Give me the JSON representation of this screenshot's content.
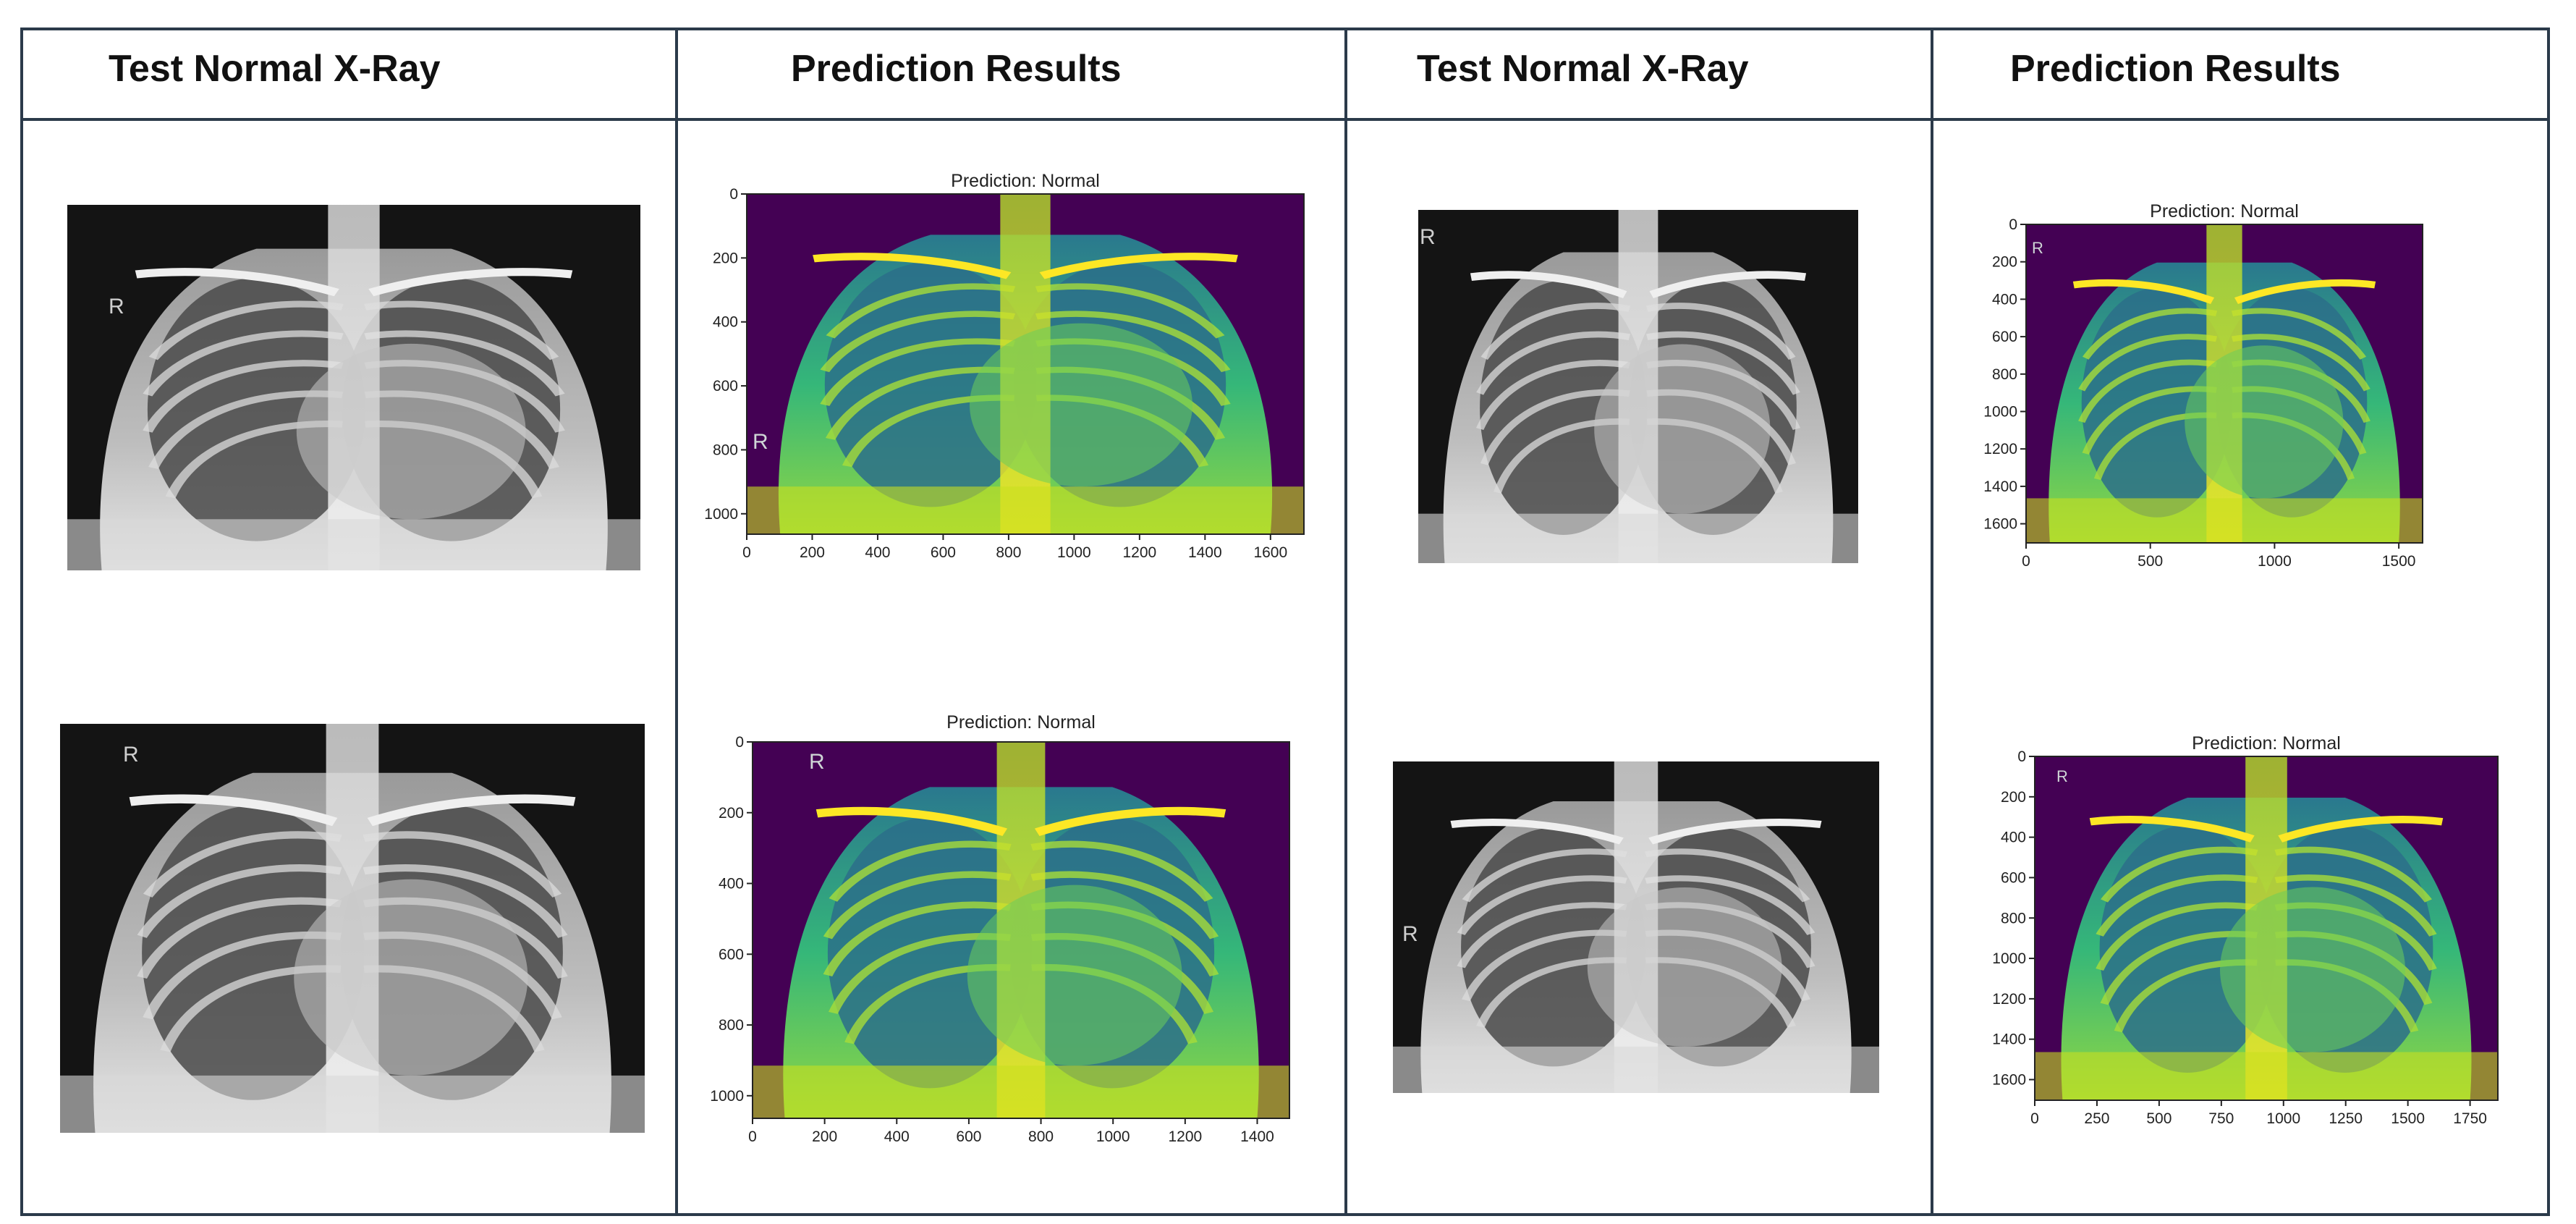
{
  "headers": [
    "Test Normal X-Ray",
    "Prediction Results",
    "Test Normal X-Ray",
    "Prediction Results"
  ],
  "side_marker": "R",
  "colors": {
    "border": "#2b3a4a",
    "viridis_dark": "#440154",
    "viridis_mid": "#21918c",
    "viridis_bright": "#fde725",
    "xray_dark": "#111111",
    "xray_light": "#e8e8e8"
  },
  "predictions": [
    {
      "title": "Prediction:  Normal",
      "xticks": [
        "0",
        "200",
        "400",
        "600",
        "800",
        "1000",
        "1200",
        "1400",
        "1600"
      ],
      "yticks": [
        "0",
        "200",
        "400",
        "600",
        "800",
        "1000"
      ]
    },
    {
      "title": "Prediction:  Normal",
      "xticks": [
        "0",
        "500",
        "1000",
        "1500"
      ],
      "yticks": [
        "0",
        "200",
        "400",
        "600",
        "800",
        "1000",
        "1200",
        "1400",
        "1600"
      ]
    },
    {
      "title": "Prediction:  Normal",
      "xticks": [
        "0",
        "200",
        "400",
        "600",
        "800",
        "1000",
        "1200",
        "1400"
      ],
      "yticks": [
        "0",
        "200",
        "400",
        "600",
        "800",
        "1000"
      ]
    },
    {
      "title": "Prediction:  Normal",
      "xticks": [
        "0",
        "250",
        "500",
        "750",
        "1000",
        "1250",
        "1500",
        "1750"
      ],
      "yticks": [
        "0",
        "200",
        "400",
        "600",
        "800",
        "1000",
        "1200",
        "1400",
        "1600"
      ]
    }
  ]
}
